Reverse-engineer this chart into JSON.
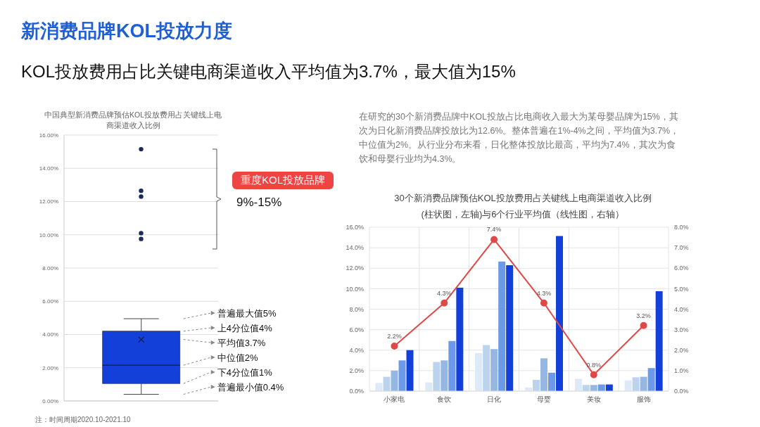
{
  "chart_data": [
    {
      "type": "other",
      "title": "新消费品牌KOL投放力度",
      "subtitle": "KOL投放费用占比关键电商渠道收入平均值为3.7%，最大值为15%",
      "annotations": [
        "注：时间周期2020.10-2021.10"
      ]
    },
    {
      "type": "box",
      "title": "中国典型新消费品牌预估KOL投放费用占关键线上电商渠道收入比例",
      "categories": [
        null
      ],
      "color": "#1240d8",
      "boxes": [
        {
          "low": 0.4,
          "q1": 1.05,
          "median": 2.15,
          "q3": 4.2,
          "high": 4.95,
          "mean": 3.7,
          "outliers": [
            15.15,
            12.65,
            12.3,
            10.1,
            9.75
          ]
        }
      ],
      "ylim": [
        0,
        16
      ],
      "yticks": [
        {
          "value": 0,
          "label": "0.00%"
        },
        {
          "value": 2,
          "label": "2.00%"
        },
        {
          "value": 4,
          "label": "4.00%"
        },
        {
          "value": 6,
          "label": "6.00%"
        },
        {
          "value": 8,
          "label": "8.00%"
        },
        {
          "value": 10,
          "label": "10.00%"
        },
        {
          "value": 12,
          "label": "12.00%"
        },
        {
          "value": 14,
          "label": "14.00%"
        },
        {
          "value": 16,
          "label": "16.00%"
        }
      ],
      "grid": "y",
      "tick_labels": "y",
      "annotations": [
        "重度KOL投放品牌",
        "9%-15%",
        "普遍最大值5%",
        "上4分位值4%",
        "平均值3.7%",
        "中位值2%",
        "下4分位值1%",
        "普遍最小值0.4%"
      ]
    },
    {
      "type": "bar",
      "title": "30个新消费品牌预估KOL投放费用占关键线上电商渠道收入比例(柱状图，左轴)与6个行业平均值（线性图，右轴）",
      "categories": [
        "小家电",
        "食饮",
        "日化",
        "母婴",
        "美妆",
        "服饰"
      ],
      "series": [
        {
          "color": "#dde9f6",
          "values": [
            0.8,
            0.85,
            3.7,
            0.35,
            1.2,
            1.05
          ]
        },
        {
          "color": "#bcd3ee",
          "values": [
            1.4,
            2.85,
            4.5,
            1.1,
            0.6,
            1.35
          ]
        },
        {
          "color": "#95b7e2",
          "values": [
            2.0,
            3.0,
            4.1,
            3.2,
            0.6,
            1.4
          ]
        },
        {
          "color": "#6d9ae8",
          "values": [
            3.0,
            4.9,
            12.65,
            1.8,
            0.65,
            2.25
          ]
        },
        {
          "color": "#1240d8",
          "values": [
            4.0,
            10.1,
            12.3,
            15.15,
            0.65,
            9.75
          ]
        },
        {
          "type": "line",
          "axis": "y2",
          "color": "#e04848",
          "marker": "circle",
          "values": [
            2.2,
            4.3,
            7.4,
            4.3,
            0.8,
            3.2
          ],
          "value_labels": [
            "2.2%",
            "4.3%",
            "7.4%",
            "4.3%",
            "0.8%",
            "3.2%"
          ]
        }
      ],
      "ylim": [
        0,
        16
      ],
      "yticks": [
        {
          "value": 0,
          "label": "0.0%"
        },
        {
          "value": 2,
          "label": "2.0%"
        },
        {
          "value": 4,
          "label": "4.0%"
        },
        {
          "value": 6,
          "label": "6.0%"
        },
        {
          "value": 8,
          "label": "8.0%"
        },
        {
          "value": 10,
          "label": "10.0%"
        },
        {
          "value": 12,
          "label": "12.0%"
        },
        {
          "value": 14,
          "label": "14.0%"
        },
        {
          "value": 16,
          "label": "16.0%"
        }
      ],
      "y2lim": [
        0,
        8
      ],
      "y2ticks": [
        {
          "value": 0,
          "label": "0.0%"
        },
        {
          "value": 1,
          "label": "1.0%"
        },
        {
          "value": 2,
          "label": "2.0%"
        },
        {
          "value": 3,
          "label": "3.0%"
        },
        {
          "value": 4,
          "label": "4.0%"
        },
        {
          "value": 5,
          "label": "5.0%"
        },
        {
          "value": 6,
          "label": "6.0%"
        },
        {
          "value": 7,
          "label": "7.0%"
        },
        {
          "value": 8,
          "label": "8.0%"
        }
      ],
      "grid": true,
      "legend": false,
      "annotations": [
        "在研究的30个新消费品牌中KOL投放占比电商收入最大为某母婴品牌为15%，其次为日化新消费品牌投放比为12.6%。整体普遍在1%-4%之间，平均值为3.7%，中位值为2%。从行业分布来看，日化整体投放比最高，平均为7.4%，其次为食饮和母婴行业均为4.3%。"
      ]
    }
  ]
}
